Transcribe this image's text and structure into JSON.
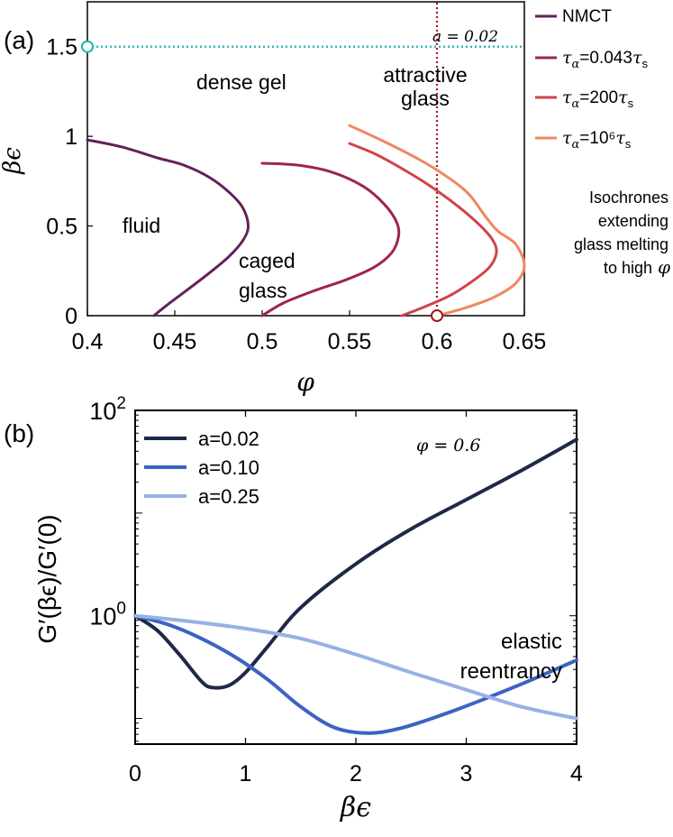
{
  "chart_data": [
    {
      "panel": "(a)",
      "type": "line",
      "xlabel": "φ",
      "ylabel": "βϵ",
      "xlim": [
        0.4,
        0.65
      ],
      "ylim": [
        0,
        1.75
      ],
      "xticks": [
        "0.4",
        "0.45",
        "0.5",
        "0.55",
        "0.6",
        "0.65"
      ],
      "yticks": [
        "0",
        "0.5",
        "1",
        "1.5"
      ],
      "series": [
        {
          "name": "NMCT",
          "color": "#652059",
          "points": [
            [
              0.4,
              0.98
            ],
            [
              0.42,
              0.94
            ],
            [
              0.44,
              0.88
            ],
            [
              0.455,
              0.84
            ],
            [
              0.47,
              0.77
            ],
            [
              0.482,
              0.68
            ],
            [
              0.489,
              0.6
            ],
            [
              0.492,
              0.5
            ],
            [
              0.489,
              0.42
            ],
            [
              0.481,
              0.33
            ],
            [
              0.47,
              0.24
            ],
            [
              0.458,
              0.15
            ],
            [
              0.447,
              0.07
            ],
            [
              0.438,
              0
            ]
          ]
        },
        {
          "name": "τα=0.043τs",
          "color": "#9d2550",
          "points": [
            [
              0.5,
              0.85
            ],
            [
              0.52,
              0.84
            ],
            [
              0.54,
              0.8
            ],
            [
              0.558,
              0.72
            ],
            [
              0.57,
              0.62
            ],
            [
              0.577,
              0.52
            ],
            [
              0.578,
              0.44
            ],
            [
              0.574,
              0.35
            ],
            [
              0.564,
              0.27
            ],
            [
              0.548,
              0.2
            ],
            [
              0.53,
              0.14
            ],
            [
              0.512,
              0.07
            ],
            [
              0.5,
              0
            ]
          ]
        },
        {
          "name": "τα=200τs",
          "color": "#d0434a",
          "points": [
            [
              0.55,
              0.96
            ],
            [
              0.565,
              0.9
            ],
            [
              0.58,
              0.82
            ],
            [
              0.595,
              0.73
            ],
            [
              0.612,
              0.61
            ],
            [
              0.625,
              0.5
            ],
            [
              0.632,
              0.42
            ],
            [
              0.634,
              0.35
            ],
            [
              0.63,
              0.27
            ],
            [
              0.62,
              0.19
            ],
            [
              0.607,
              0.11
            ],
            [
              0.593,
              0.05
            ],
            [
              0.58,
              0
            ]
          ]
        },
        {
          "name": "τα=10⁶τs",
          "color": "#f0875f",
          "points": [
            [
              0.55,
              1.06
            ],
            [
              0.57,
              0.97
            ],
            [
              0.59,
              0.87
            ],
            [
              0.605,
              0.78
            ],
            [
              0.618,
              0.68
            ],
            [
              0.628,
              0.55
            ],
            [
              0.635,
              0.47
            ],
            [
              0.645,
              0.4
            ],
            [
              0.65,
              0.28
            ],
            [
              0.645,
              0.18
            ],
            [
              0.632,
              0.1
            ],
            [
              0.615,
              0.04
            ],
            [
              0.6,
              0
            ]
          ]
        }
      ],
      "guide_lines": [
        {
          "orientation": "horizontal",
          "value": 1.5,
          "color": "#1fb3ad"
        },
        {
          "orientation": "vertical",
          "value": 0.6,
          "color": "#a5161e"
        }
      ],
      "markers": [
        {
          "x": 0.4,
          "y": 1.5,
          "color": "#1fb3ad"
        },
        {
          "x": 0.6,
          "y": 0,
          "color": "#a5161e"
        }
      ],
      "annotations": {
        "a_value": "a = 0.02",
        "dense_gel": "dense gel",
        "attractive_1": "attractive",
        "attractive_2": "glass",
        "fluid": "fluid",
        "caged_1": "caged",
        "caged_2": "glass",
        "iso_1": "Isochrones",
        "iso_2": "extending",
        "iso_3": "glass melting",
        "iso_4": "to high"
      },
      "legend": [
        {
          "label": "NMCT",
          "color": "#652059"
        },
        {
          "label": "τα=0.043τs",
          "color": "#9d2550"
        },
        {
          "label": "τα=200τs",
          "color": "#d0434a"
        },
        {
          "label": "τα=10⁶τs",
          "color": "#f0875f"
        }
      ]
    },
    {
      "panel": "(b)",
      "type": "line",
      "xlabel": "βϵ",
      "ylabel": "G′(βϵ)/G′(0)",
      "xlim": [
        0,
        4
      ],
      "ylim_log10": [
        -1.25,
        2
      ],
      "xticks": [
        "0",
        "1",
        "2",
        "3",
        "4"
      ],
      "yticks": [
        "10⁰",
        "10²"
      ],
      "series": [
        {
          "name": "a=0.02",
          "color": "#1e2a45",
          "points": [
            [
              0,
              1
            ],
            [
              0.2,
              0.72
            ],
            [
              0.4,
              0.42
            ],
            [
              0.6,
              0.23
            ],
            [
              0.7,
              0.2
            ],
            [
              0.85,
              0.21
            ],
            [
              1.0,
              0.28
            ],
            [
              1.2,
              0.5
            ],
            [
              1.5,
              1.2
            ],
            [
              2.0,
              3.2
            ],
            [
              2.5,
              7
            ],
            [
              3.0,
              13.5
            ],
            [
              3.5,
              26
            ],
            [
              4.0,
              52
            ]
          ]
        },
        {
          "name": "a=0.10",
          "color": "#3d63c2",
          "points": [
            [
              0,
              1
            ],
            [
              0.3,
              0.82
            ],
            [
              0.6,
              0.6
            ],
            [
              0.9,
              0.4
            ],
            [
              1.2,
              0.24
            ],
            [
              1.5,
              0.13
            ],
            [
              1.8,
              0.082
            ],
            [
              2.1,
              0.072
            ],
            [
              2.4,
              0.08
            ],
            [
              2.8,
              0.11
            ],
            [
              3.2,
              0.16
            ],
            [
              3.6,
              0.24
            ],
            [
              4.0,
              0.37
            ]
          ]
        },
        {
          "name": "a=0.25",
          "color": "#98b0e4",
          "points": [
            [
              0,
              1
            ],
            [
              0.5,
              0.88
            ],
            [
              1.0,
              0.75
            ],
            [
              1.5,
              0.6
            ],
            [
              2.0,
              0.42
            ],
            [
              2.5,
              0.28
            ],
            [
              3.0,
              0.19
            ],
            [
              3.5,
              0.13
            ],
            [
              4.0,
              0.1
            ]
          ]
        }
      ],
      "annotations": {
        "phi_label": "φ = 0.6",
        "elastic": "elastic",
        "reentrancy": "reentrancy"
      },
      "legend": [
        {
          "label": "a=0.02",
          "color": "#1e2a45"
        },
        {
          "label": "a=0.10",
          "color": "#3d63c2"
        },
        {
          "label": "a=0.25",
          "color": "#98b0e4"
        }
      ]
    }
  ]
}
